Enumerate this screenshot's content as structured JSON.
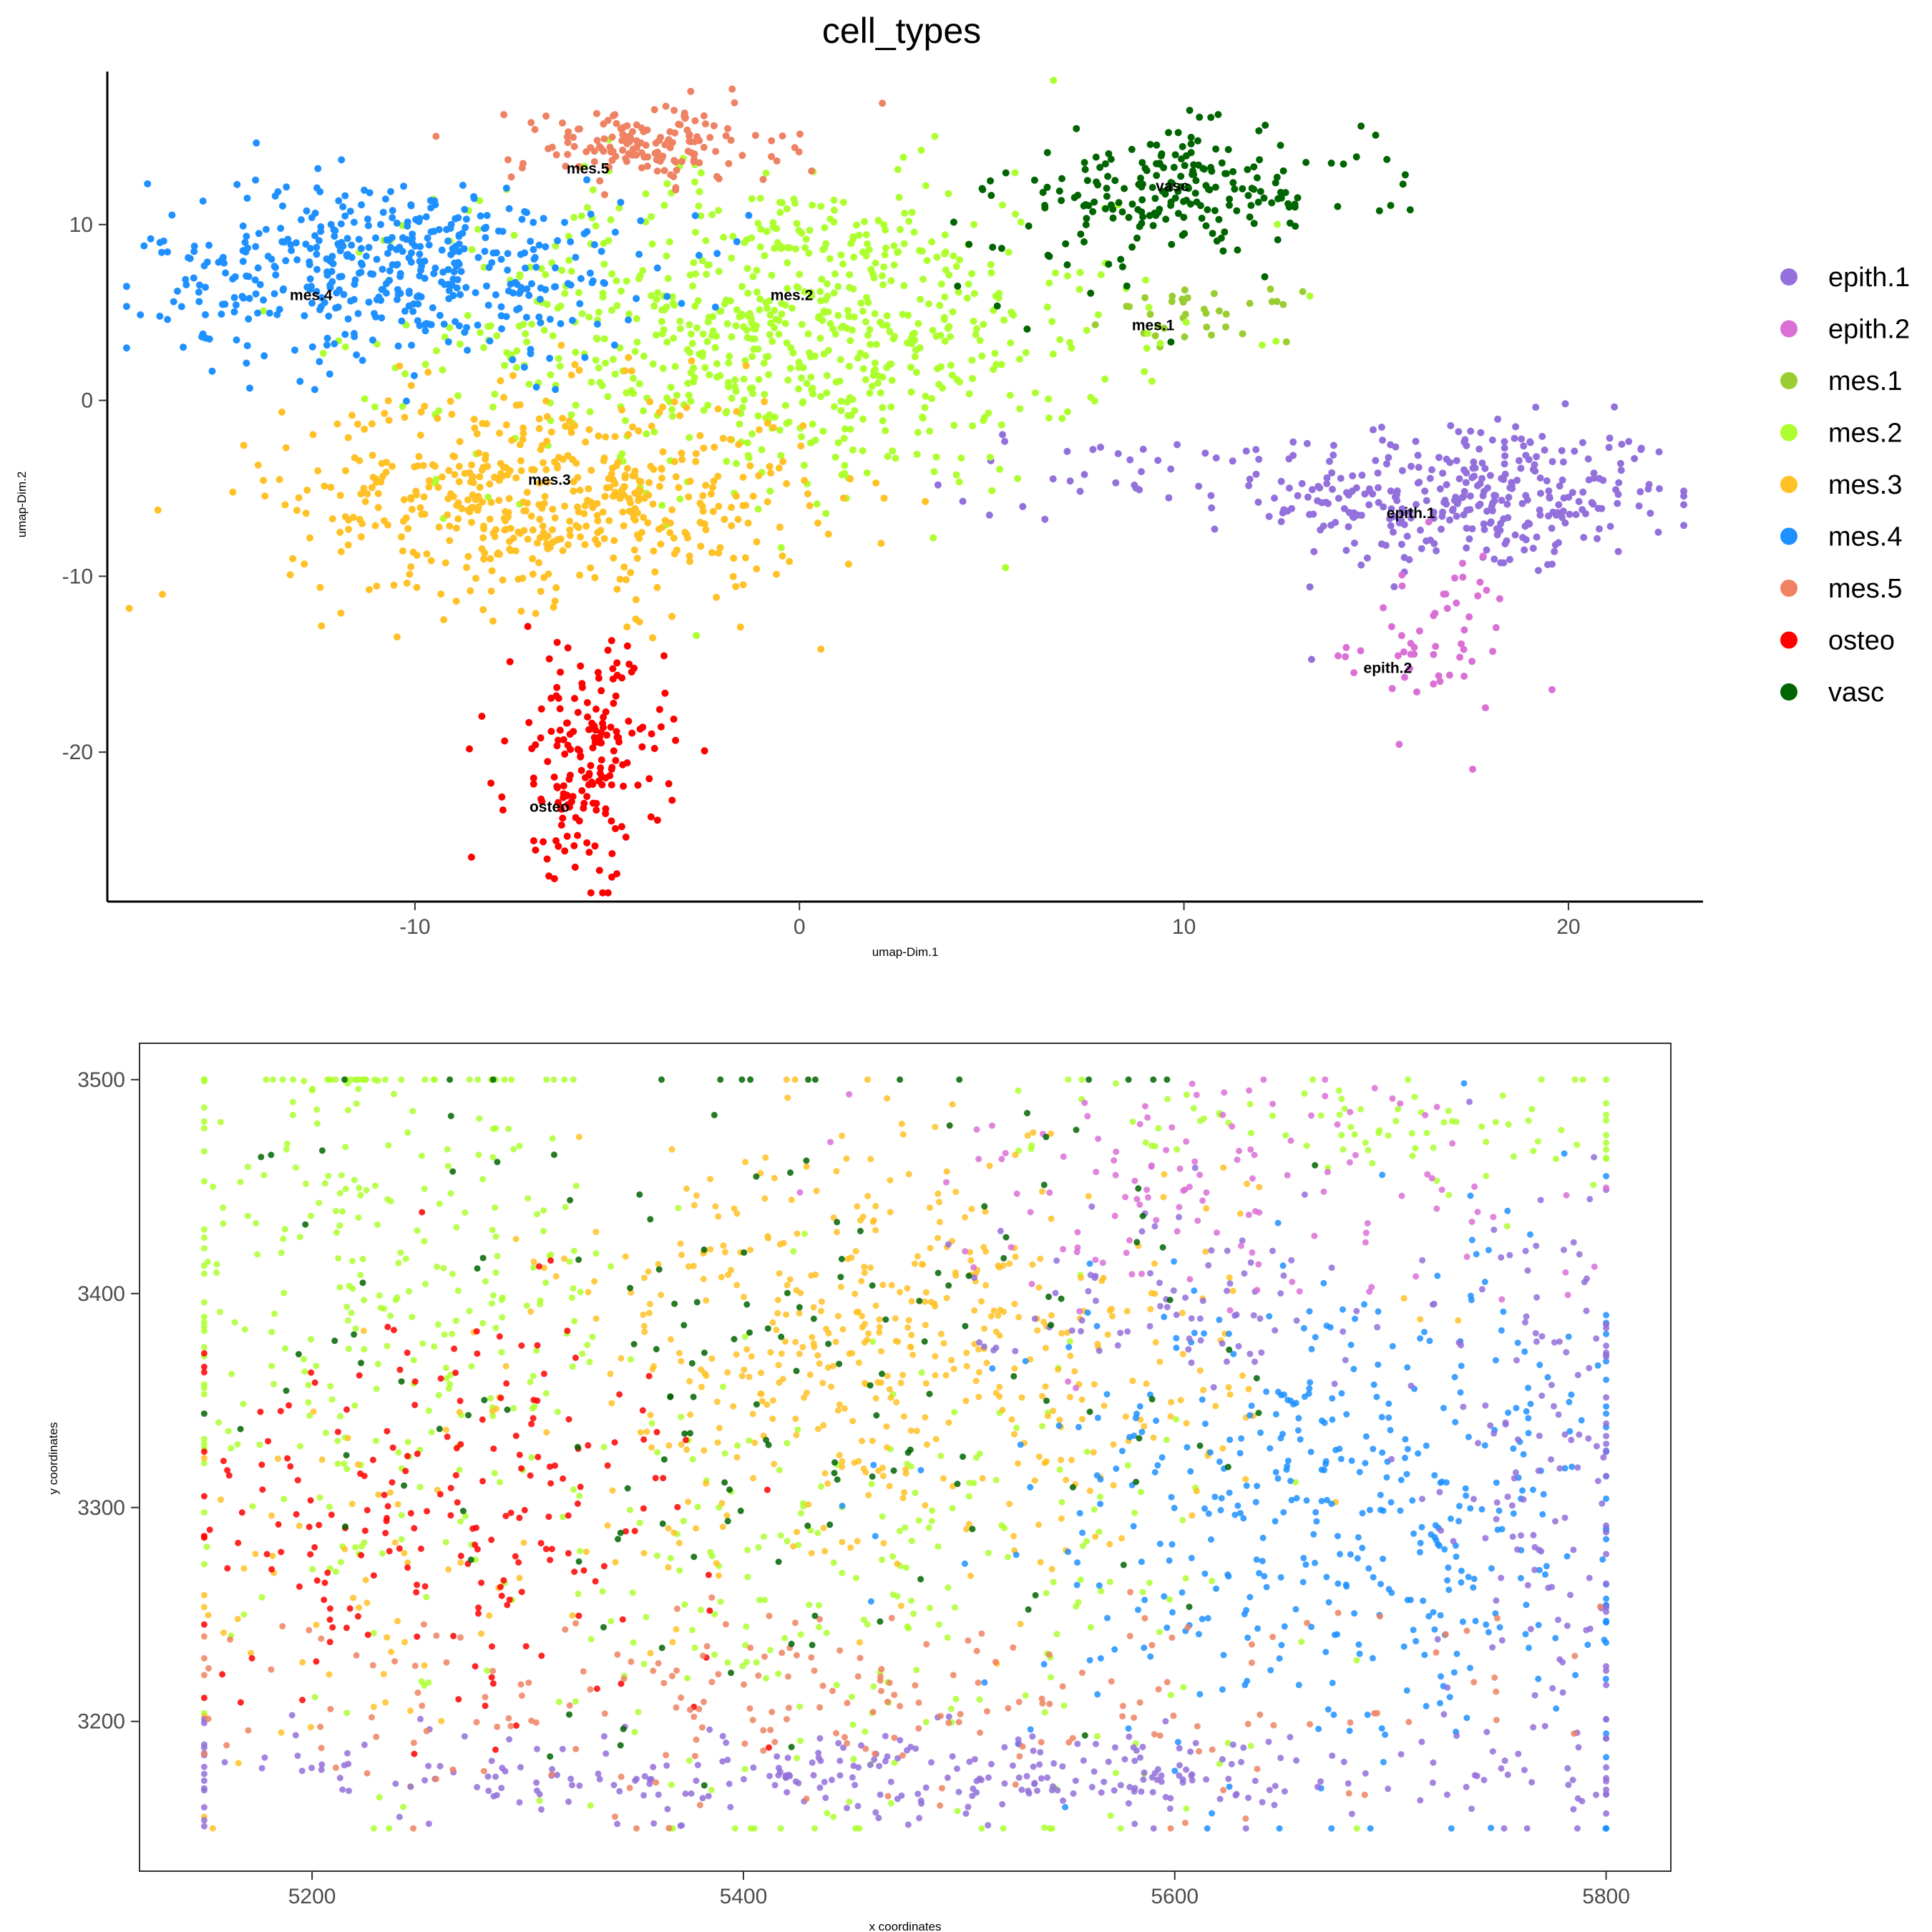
{
  "title": "cell_types",
  "colors": {
    "epith.1": "#9370DB",
    "epith.2": "#DA70D6",
    "mes.1": "#9ACD32",
    "mes.2": "#ADFF2F",
    "mes.3": "#FFC125",
    "mes.4": "#1E90FF",
    "mes.5": "#EE8262",
    "osteo": "#FF0000",
    "vasc": "#006400"
  },
  "legend": {
    "placement": "right",
    "items": [
      "epith.1",
      "epith.2",
      "mes.1",
      "mes.2",
      "mes.3",
      "mes.4",
      "mes.5",
      "osteo",
      "vasc"
    ]
  },
  "chart_data": [
    {
      "type": "scatter",
      "xlabel": "umap-Dim.1",
      "ylabel": "umap-Dim.2",
      "xlim": [
        -18,
        23.5
      ],
      "ylim": [
        -28.5,
        18.7
      ],
      "x_ticks": [
        -10,
        0,
        10,
        20
      ],
      "y_ticks": [
        -20,
        -10,
        0,
        10
      ],
      "x_tick_labels": [
        "-10",
        "0",
        "10",
        "20"
      ],
      "y_tick_labels": [
        "-20",
        "-10",
        "0",
        "10"
      ],
      "grid": false,
      "cluster_labels": [
        {
          "text": "mes.5",
          "x": -5.5,
          "y": 12.9
        },
        {
          "text": "vasc",
          "x": 9.7,
          "y": 11.9
        },
        {
          "text": "mes.4",
          "x": -12.7,
          "y": 5.7
        },
        {
          "text": "mes.2",
          "x": -0.2,
          "y": 5.7
        },
        {
          "text": "mes.1",
          "x": 9.2,
          "y": 4.0
        },
        {
          "text": "mes.3",
          "x": -6.5,
          "y": -4.8
        },
        {
          "text": "epith.1",
          "x": 15.9,
          "y": -6.7
        },
        {
          "text": "epith.2",
          "x": 15.3,
          "y": -15.5
        },
        {
          "text": "osteo",
          "x": -6.5,
          "y": -23.4
        }
      ],
      "clusters": [
        {
          "type": "epith.1",
          "cx": 17.5,
          "cy": -5.5,
          "sx": 2.7,
          "sy": 2.2,
          "n": 330
        },
        {
          "type": "epith.1",
          "cx": 9.5,
          "cy": -4.2,
          "sx": 2.8,
          "sy": 1.3,
          "n": 45
        },
        {
          "type": "epith.2",
          "cx": 16.5,
          "cy": -13.5,
          "sx": 1.1,
          "sy": 2.6,
          "n": 55
        },
        {
          "type": "mes.1",
          "cx": 10.5,
          "cy": 4.8,
          "sx": 1.2,
          "sy": 0.7,
          "n": 35
        },
        {
          "type": "mes.2",
          "cx": -0.5,
          "cy": 4.0,
          "sx": 4.3,
          "sy": 4.5,
          "n": 780
        },
        {
          "type": "mes.3",
          "cx": -6.5,
          "cy": -5.5,
          "sx": 3.4,
          "sy": 3.0,
          "n": 560
        },
        {
          "type": "mes.4",
          "cx": -10.5,
          "cy": 7.5,
          "sx": 3.2,
          "sy": 2.6,
          "n": 480
        },
        {
          "type": "mes.5",
          "cx": -4.0,
          "cy": 14.5,
          "sx": 1.7,
          "sy": 1.1,
          "n": 160
        },
        {
          "type": "osteo",
          "cx": -5.5,
          "cy": -20.5,
          "sx": 1.0,
          "sy": 3.2,
          "n": 190
        },
        {
          "type": "vasc",
          "cx": 10.0,
          "cy": 12.0,
          "sx": 2.4,
          "sy": 1.6,
          "n": 200
        },
        {
          "type": "vasc",
          "cx": 6.5,
          "cy": 8.0,
          "sx": 2.0,
          "sy": 3.0,
          "n": 25
        }
      ]
    },
    {
      "type": "scatter",
      "xlabel": "x coordinates",
      "ylabel": "y coordinates",
      "xlim": [
        5120,
        5830
      ],
      "ylim": [
        3130,
        3517
      ],
      "x_ticks": [
        5200,
        5400,
        5600,
        5800
      ],
      "y_ticks": [
        3200,
        3300,
        3400,
        3500
      ],
      "x_tick_labels": [
        "5200",
        "5400",
        "5600",
        "5800"
      ],
      "y_tick_labels": [
        "3200",
        "3300",
        "3400",
        "3500"
      ],
      "grid": false,
      "regions": [
        {
          "type": "mes.2",
          "cx": 5230,
          "cy": 3400,
          "sx": 60,
          "sy": 70,
          "n": 320
        },
        {
          "type": "mes.2",
          "cx": 5450,
          "cy": 3260,
          "sx": 90,
          "sy": 60,
          "n": 260
        },
        {
          "type": "mes.2",
          "cx": 5700,
          "cy": 3480,
          "sx": 80,
          "sy": 15,
          "n": 90
        },
        {
          "type": "mes.3",
          "cx": 5470,
          "cy": 3370,
          "sx": 80,
          "sy": 50,
          "n": 520
        },
        {
          "type": "mes.3",
          "cx": 5220,
          "cy": 3250,
          "sx": 50,
          "sy": 50,
          "n": 60
        },
        {
          "type": "osteo",
          "cx": 5260,
          "cy": 3300,
          "sx": 65,
          "sy": 45,
          "n": 210
        },
        {
          "type": "mes.4",
          "cx": 5680,
          "cy": 3300,
          "sx": 75,
          "sy": 60,
          "n": 460
        },
        {
          "type": "epith.1",
          "cx": 5500,
          "cy": 3175,
          "sx": 170,
          "sy": 12,
          "n": 330
        },
        {
          "type": "epith.1",
          "cx": 5770,
          "cy": 3320,
          "sx": 25,
          "sy": 70,
          "n": 140
        },
        {
          "type": "epith.1",
          "cx": 5600,
          "cy": 3400,
          "sx": 50,
          "sy": 20,
          "n": 80
        },
        {
          "type": "epith.2",
          "cx": 5610,
          "cy": 3450,
          "sx": 80,
          "sy": 30,
          "n": 130
        },
        {
          "type": "mes.5",
          "cx": 5430,
          "cy": 3210,
          "sx": 170,
          "sy": 25,
          "n": 220
        },
        {
          "type": "vasc",
          "cx": 5420,
          "cy": 3360,
          "sx": 120,
          "sy": 90,
          "n": 170
        }
      ]
    }
  ]
}
